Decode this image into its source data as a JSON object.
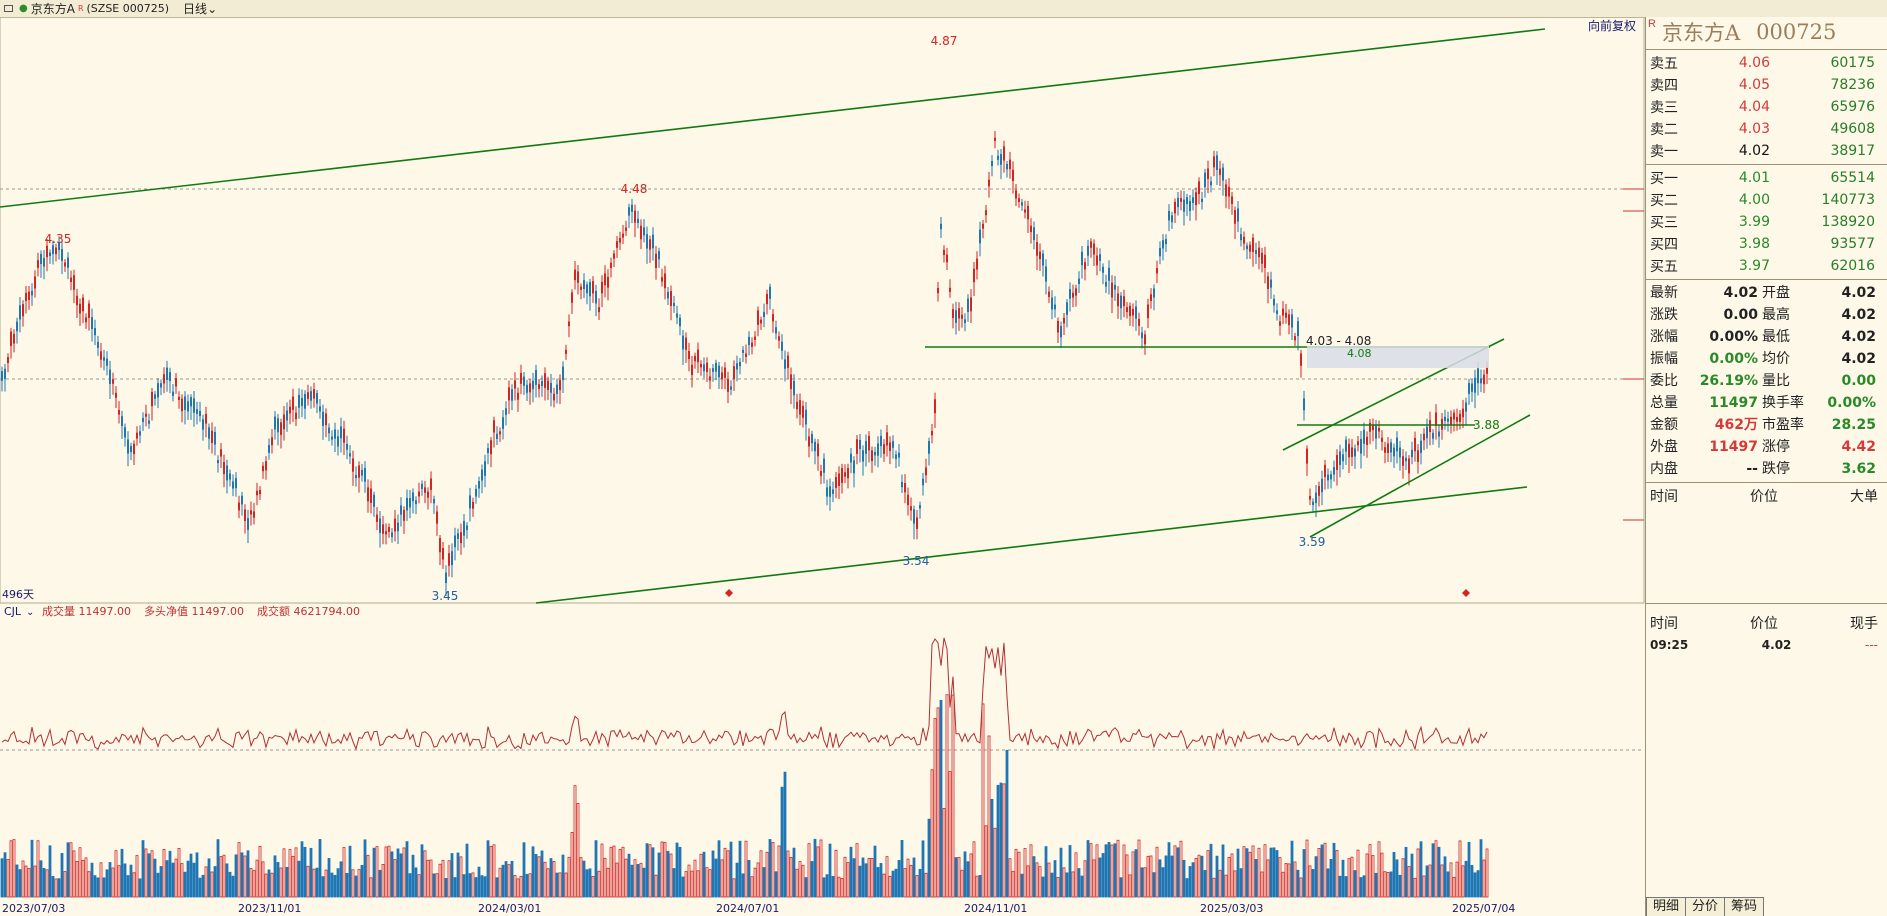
{
  "topbar": {
    "title": "京东方A",
    "code": "(SZSE 000725)",
    "period": "日线"
  },
  "chart": {
    "restore_btn": "向前复权",
    "days_label": "496天",
    "indicator": {
      "name": "CJL",
      "vol_label": "成交量 11497.00",
      "net_label": "多头净值 11497.00",
      "amt_label": "成交额 4621794.00"
    },
    "annotations": {
      "p487": "4.87",
      "p448": "4.48",
      "p435": "4.35",
      "p345": "3.45",
      "p354": "3.54",
      "p359": "3.59",
      "p388": "3.88",
      "range": "4.03 - 4.08",
      "p408": "4.08"
    },
    "dates": [
      "2023/07/03",
      "2023/11/01",
      "2024/03/01",
      "2024/07/01",
      "2024/11/01",
      "2025/03/03",
      "2025/07/04"
    ]
  },
  "panel": {
    "name": "京东方A",
    "code": "000725",
    "asks": [
      {
        "label": "卖五",
        "price": "4.06",
        "vol": "60175"
      },
      {
        "label": "卖四",
        "price": "4.05",
        "vol": "78236"
      },
      {
        "label": "卖三",
        "price": "4.04",
        "vol": "65976"
      },
      {
        "label": "卖二",
        "price": "4.03",
        "vol": "49608"
      },
      {
        "label": "卖一",
        "price": "4.02",
        "vol": "38917"
      }
    ],
    "bids": [
      {
        "label": "买一",
        "price": "4.01",
        "vol": "65514"
      },
      {
        "label": "买二",
        "price": "4.00",
        "vol": "140773"
      },
      {
        "label": "买三",
        "price": "3.99",
        "vol": "138920"
      },
      {
        "label": "买四",
        "price": "3.98",
        "vol": "93577"
      },
      {
        "label": "买五",
        "price": "3.97",
        "vol": "62016"
      }
    ],
    "stats": [
      [
        "最新",
        "4.02",
        "开盘",
        "4.02"
      ],
      [
        "涨跌",
        "0.00",
        "最高",
        "4.02"
      ],
      [
        "涨幅",
        "0.00%",
        "最低",
        "4.02"
      ],
      [
        "振幅",
        "0.00%",
        "均价",
        "4.02"
      ],
      [
        "委比",
        "26.19%",
        "量比",
        "0.00"
      ],
      [
        "总量",
        "11497",
        "换手率",
        "0.00%"
      ],
      [
        "金额",
        "462万",
        "市盈率",
        "28.25"
      ],
      [
        "外盘",
        "11497",
        "涨停",
        "4.42"
      ],
      [
        "内盘",
        "--",
        "跌停",
        "3.62"
      ]
    ],
    "trade_hdr": [
      "时间",
      "价位",
      "大单"
    ],
    "tick_hdr": [
      "时间",
      "价位",
      "现手"
    ],
    "tick_row": [
      "09:25",
      "4.02",
      "---"
    ],
    "tabs": [
      "明细",
      "分价",
      "筹码"
    ]
  },
  "colors": {
    "up": "#d42424",
    "down": "#1f77b4",
    "trend": "#0e7a0e",
    "bg": "#fdf8e8"
  }
}
